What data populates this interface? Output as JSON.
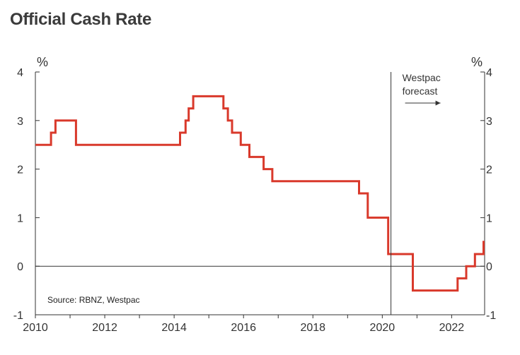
{
  "chart_data": {
    "type": "line",
    "title": "Official Cash Rate",
    "ylabel_left": "%",
    "ylabel_right": "%",
    "xlim": [
      2010,
      2022.95
    ],
    "ylim": [
      -1,
      4
    ],
    "x_ticks": [
      2010,
      2012,
      2014,
      2016,
      2018,
      2020,
      2022
    ],
    "x_tick_labels": [
      "2010",
      "2012",
      "2014",
      "2016",
      "2018",
      "2020",
      "2022"
    ],
    "y_ticks": [
      -1,
      0,
      1,
      2,
      3,
      4
    ],
    "y_tick_labels": [
      "-1",
      "0",
      "1",
      "2",
      "3",
      "4"
    ],
    "forecast_start": 2020.25,
    "annotation": [
      "Westpac",
      "forecast"
    ],
    "source": "Source: RBNZ, Westpac",
    "series": [
      {
        "name": "Official Cash Rate",
        "color": "#d9392b",
        "step": true,
        "points": [
          [
            2010.0,
            2.5
          ],
          [
            2010.45,
            2.75
          ],
          [
            2010.58,
            3.0
          ],
          [
            2011.17,
            2.5
          ],
          [
            2014.17,
            2.75
          ],
          [
            2014.33,
            3.0
          ],
          [
            2014.42,
            3.25
          ],
          [
            2014.55,
            3.5
          ],
          [
            2015.42,
            3.25
          ],
          [
            2015.55,
            3.0
          ],
          [
            2015.67,
            2.75
          ],
          [
            2015.92,
            2.5
          ],
          [
            2016.17,
            2.25
          ],
          [
            2016.58,
            2.0
          ],
          [
            2016.83,
            1.75
          ],
          [
            2019.33,
            1.5
          ],
          [
            2019.58,
            1.0
          ],
          [
            2020.17,
            0.25
          ],
          [
            2020.88,
            -0.5
          ],
          [
            2022.17,
            -0.25
          ],
          [
            2022.42,
            0.0
          ],
          [
            2022.67,
            0.25
          ],
          [
            2022.92,
            0.5
          ],
          [
            2022.95,
            0.5
          ]
        ]
      }
    ]
  },
  "colors": {
    "line": "#d9392b",
    "axis": "#333333",
    "text": "#333333"
  }
}
